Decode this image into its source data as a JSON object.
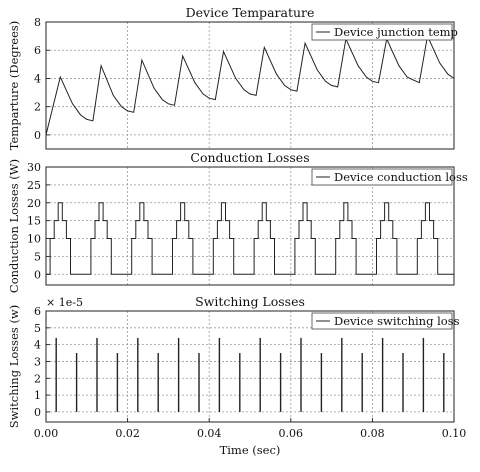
{
  "xlabel": "Time (sec)",
  "x_ticks": [
    "0.00",
    "0.02",
    "0.04",
    "0.06",
    "0.08",
    "0.10"
  ],
  "chart_data": [
    {
      "type": "line",
      "title": "Device Temparature",
      "ylabel": "Temparture (Degrees)",
      "xlim": [
        0,
        0.1
      ],
      "ylim": [
        -1,
        8
      ],
      "y_ticks": [
        "0",
        "2",
        "4",
        "6",
        "8"
      ],
      "y_tick_values": [
        0,
        2,
        4,
        6,
        8
      ],
      "grid": true,
      "legend_position": "top-right",
      "series": [
        {
          "name": "Device junction temp",
          "x": [
            0,
            0.0035,
            0.0065,
            0.0085,
            0.01,
            0.0115,
            0.0135,
            0.0165,
            0.0185,
            0.02,
            0.0215,
            0.0235,
            0.0265,
            0.0285,
            0.03,
            0.0315,
            0.0335,
            0.0365,
            0.0385,
            0.04,
            0.0415,
            0.0435,
            0.0465,
            0.0485,
            0.05,
            0.0515,
            0.0535,
            0.0565,
            0.0585,
            0.06,
            0.0615,
            0.0635,
            0.0665,
            0.0685,
            0.07,
            0.0715,
            0.0735,
            0.0765,
            0.0785,
            0.08,
            0.0815,
            0.0835,
            0.0865,
            0.0885,
            0.09,
            0.0915,
            0.0935,
            0.0965,
            0.0985,
            0.1
          ],
          "y": [
            0,
            4.1,
            2.2,
            1.4,
            1.1,
            1.0,
            4.9,
            2.8,
            2.0,
            1.7,
            1.6,
            5.3,
            3.3,
            2.5,
            2.2,
            2.1,
            5.6,
            3.7,
            2.9,
            2.6,
            2.5,
            5.9,
            4.0,
            3.2,
            2.9,
            2.8,
            6.2,
            4.3,
            3.5,
            3.2,
            3.1,
            6.5,
            4.6,
            3.8,
            3.5,
            3.4,
            6.8,
            4.9,
            4.1,
            3.8,
            3.7,
            6.8,
            4.9,
            4.1,
            3.9,
            3.7,
            7.0,
            5.1,
            4.3,
            4.0
          ]
        }
      ]
    },
    {
      "type": "line",
      "title": "Conduction Losses",
      "ylabel": "Conduction Losses (W)",
      "xlim": [
        0,
        0.1
      ],
      "ylim": [
        -3,
        30
      ],
      "y_ticks": [
        "0",
        "5",
        "10",
        "15",
        "20",
        "25",
        "30"
      ],
      "y_tick_values": [
        0,
        5,
        10,
        15,
        20,
        25,
        30
      ],
      "grid": true,
      "legend_position": "top-right",
      "pulse_period": 0.01,
      "pulse_levels": [
        10,
        15,
        20,
        15,
        10,
        0
      ],
      "series": [
        {
          "name": "Device conduction loss"
        }
      ]
    },
    {
      "type": "line",
      "title": "Switching Losses",
      "ylabel": "Switching Losses (w)",
      "scale_label": "× 1e-5",
      "xlim": [
        0,
        0.1
      ],
      "ylim": [
        -0.6,
        6
      ],
      "y_ticks": [
        "0",
        "1",
        "2",
        "3",
        "4",
        "5",
        "6"
      ],
      "y_tick_values": [
        0,
        1,
        2,
        3,
        4,
        5,
        6
      ],
      "grid": true,
      "legend_position": "top-right",
      "series": [
        {
          "name": "Device switching loss",
          "x": [
            0.0025,
            0.0075,
            0.0125,
            0.0175,
            0.0225,
            0.0275,
            0.0325,
            0.0375,
            0.0425,
            0.0475,
            0.0525,
            0.0575,
            0.0625,
            0.0675,
            0.0725,
            0.0775,
            0.0825,
            0.0875,
            0.0925,
            0.0975
          ],
          "y": [
            4.4,
            3.5,
            4.4,
            3.5,
            4.4,
            3.5,
            4.4,
            3.5,
            4.4,
            3.5,
            4.4,
            3.5,
            4.4,
            3.5,
            4.4,
            3.5,
            4.4,
            3.5,
            4.4,
            3.5
          ]
        }
      ]
    }
  ]
}
